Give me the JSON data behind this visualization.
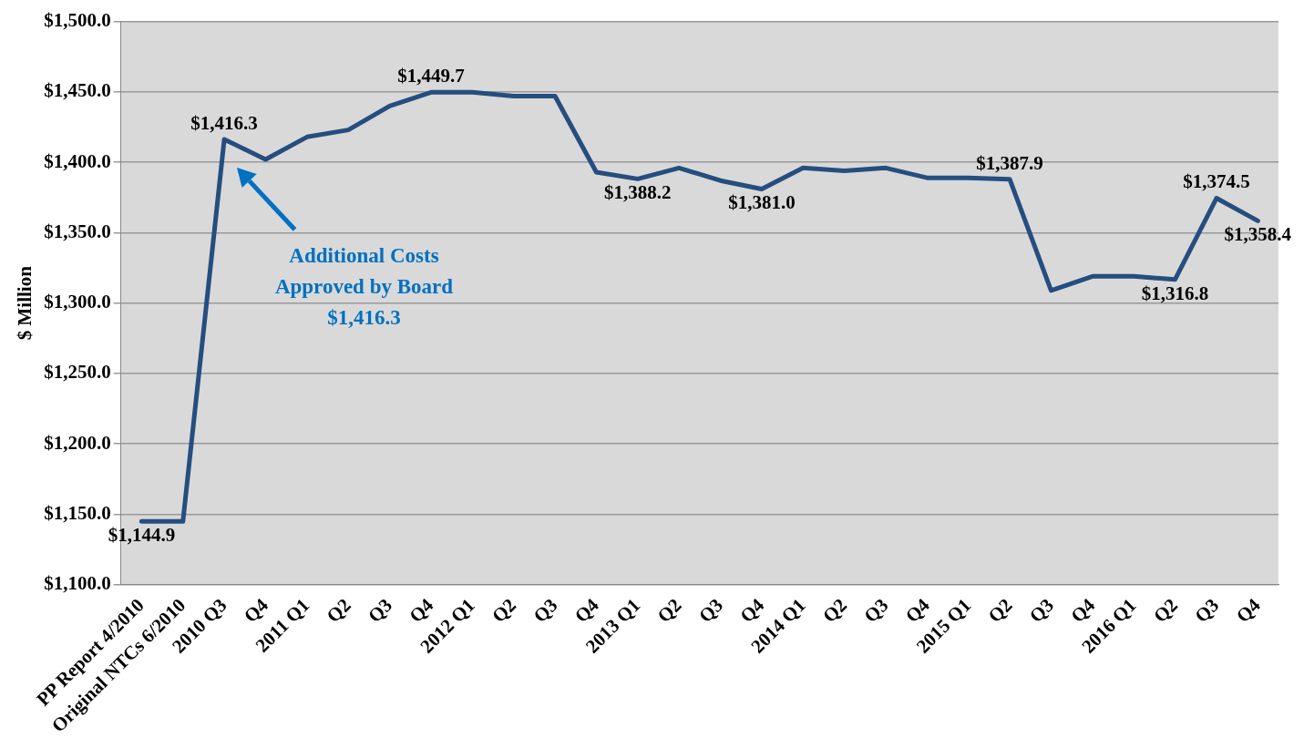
{
  "chart_data": {
    "type": "line",
    "ylabel": "$ Million",
    "categories": [
      "PP Report 4/2010",
      "Original NTCs 6/2010",
      "2010 Q3",
      "Q4",
      "2011 Q1",
      "Q2",
      "Q3",
      "Q4",
      "2012 Q1",
      "Q2",
      "Q3",
      "Q4",
      "2013 Q1",
      "Q2",
      "Q3",
      "Q4",
      "2014 Q1",
      "Q2",
      "Q3",
      "Q4",
      "2015 Q1",
      "Q2",
      "Q3",
      "Q4",
      "2016 Q1",
      "Q2",
      "Q3",
      "Q4"
    ],
    "series": [
      {
        "color": "#254e7f",
        "values": [
          1144.9,
          1144.9,
          1416.3,
          1402,
          1418,
          1423,
          1440,
          1449.7,
          1449.7,
          1447,
          1447,
          1393,
          1388.2,
          1396,
          1387,
          1381.0,
          1396,
          1394,
          1396,
          1389,
          1389,
          1387.9,
          1309,
          1319,
          1319,
          1316.8,
          1374.5,
          1358.4
        ],
        "value_labels": [
          "$1,144.9",
          null,
          "$1,416.3",
          null,
          null,
          null,
          null,
          "$1,449.7",
          null,
          null,
          null,
          null,
          "$1,388.2",
          null,
          null,
          "$1,381.0",
          null,
          null,
          null,
          null,
          null,
          "$1,387.9",
          null,
          null,
          null,
          "$1,316.8",
          "$1,374.5",
          "$1,358.4"
        ]
      }
    ],
    "ylim": [
      1100,
      1500
    ],
    "yticks": [
      {
        "value": 1100,
        "label": "$1,100.0"
      },
      {
        "value": 1150,
        "label": "$1,150.0"
      },
      {
        "value": 1200,
        "label": "$1,200.0"
      },
      {
        "value": 1250,
        "label": "$1,250.0"
      },
      {
        "value": 1300,
        "label": "$1,300.0"
      },
      {
        "value": 1350,
        "label": "$1,350.0"
      },
      {
        "value": 1400,
        "label": "$1,400.0"
      },
      {
        "value": 1450,
        "label": "$1,450.0"
      },
      {
        "value": 1500,
        "label": "$1,500.0"
      }
    ],
    "grid": "y",
    "legend": false,
    "marker": "none",
    "line_style": "solid",
    "annotations": [
      "Additional Costs Approved by Board $1,416.3"
    ]
  }
}
